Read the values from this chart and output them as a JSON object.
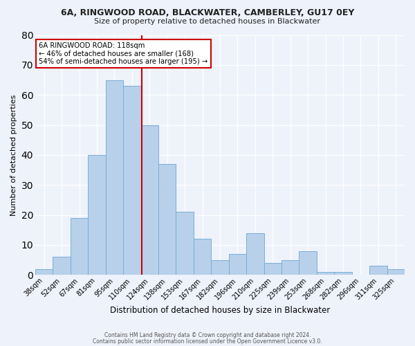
{
  "title1": "6A, RINGWOOD ROAD, BLACKWATER, CAMBERLEY, GU17 0EY",
  "title2": "Size of property relative to detached houses in Blackwater",
  "xlabel": "Distribution of detached houses by size in Blackwater",
  "ylabel": "Number of detached properties",
  "categories": [
    "38sqm",
    "52sqm",
    "67sqm",
    "81sqm",
    "95sqm",
    "110sqm",
    "124sqm",
    "138sqm",
    "153sqm",
    "167sqm",
    "182sqm",
    "196sqm",
    "210sqm",
    "225sqm",
    "239sqm",
    "253sqm",
    "268sqm",
    "282sqm",
    "296sqm",
    "311sqm",
    "325sqm"
  ],
  "values": [
    2,
    6,
    19,
    40,
    65,
    63,
    50,
    37,
    21,
    12,
    5,
    7,
    14,
    4,
    5,
    8,
    1,
    1,
    0,
    3,
    2
  ],
  "bar_color": "#b8d0ea",
  "bar_edge_color": "#7aaed6",
  "red_line_x": 5.57,
  "annotation_text1": "6A RINGWOOD ROAD: 118sqm",
  "annotation_text2": "← 46% of detached houses are smaller (168)",
  "annotation_text3": "54% of semi-detached houses are larger (195) →",
  "ylim": [
    0,
    80
  ],
  "yticks": [
    0,
    10,
    20,
    30,
    40,
    50,
    60,
    70,
    80
  ],
  "footer1": "Contains HM Land Registry data © Crown copyright and database right 2024.",
  "footer2": "Contains public sector information licensed under the Open Government Licence v3.0.",
  "bg_color": "#eef2fb",
  "annotation_box_color": "#ffffff",
  "annotation_box_edge": "#cc0000"
}
